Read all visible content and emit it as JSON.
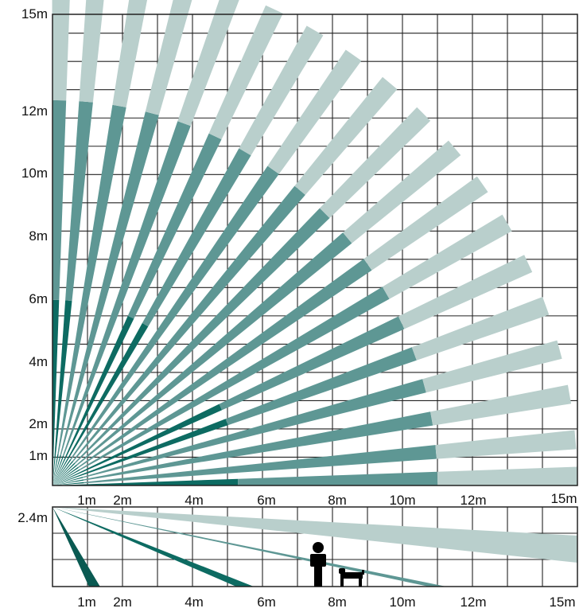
{
  "colors": {
    "dark": "#0d6b62",
    "mid": "#5e9794",
    "light": "#b9cfcc",
    "grid": "#222222",
    "background": "#ffffff",
    "silhouette": "#000000"
  },
  "top_view": {
    "y_labels": [
      "15m",
      "12m",
      "10m",
      "8m",
      "6m",
      "4m",
      "2m",
      "1m"
    ],
    "x_labels": [
      "1m",
      "2m",
      "4m",
      "6m",
      "8m",
      "10m",
      "12m",
      "15m"
    ],
    "beams": [
      {
        "direction_deg": 89,
        "mid_from_m": 5.3,
        "light_from_m": 11.0,
        "end_m": 15.0
      },
      {
        "direction_deg": 85,
        "mid_from_m": 5.3,
        "light_from_m": 11.0,
        "end_m": 15.0
      },
      {
        "direction_deg": 80,
        "mid_from_m": 0.9,
        "light_from_m": 11.0,
        "end_m": 15.0
      },
      {
        "direction_deg": 75,
        "mid_from_m": 0.9,
        "light_from_m": 11.0,
        "end_m": 15.0
      },
      {
        "direction_deg": 70,
        "mid_from_m": 0.9,
        "light_from_m": 11.0,
        "end_m": 15.0
      },
      {
        "direction_deg": 65,
        "mid_from_m": 5.3,
        "light_from_m": 11.0,
        "end_m": 15.0
      },
      {
        "direction_deg": 60,
        "mid_from_m": 5.3,
        "light_from_m": 11.0,
        "end_m": 15.0
      },
      {
        "direction_deg": 55,
        "mid_from_m": 0.9,
        "light_from_m": 11.0,
        "end_m": 15.0
      },
      {
        "direction_deg": 50,
        "mid_from_m": 0.9,
        "light_from_m": 11.0,
        "end_m": 15.0
      },
      {
        "direction_deg": 45,
        "mid_from_m": 0.9,
        "light_from_m": 11.0,
        "end_m": 15.0
      },
      {
        "direction_deg": 40,
        "mid_from_m": 0.9,
        "light_from_m": 11.0,
        "end_m": 15.0
      },
      {
        "direction_deg": 35,
        "mid_from_m": 0.9,
        "light_from_m": 11.0,
        "end_m": 15.0
      },
      {
        "direction_deg": 30,
        "mid_from_m": 0.9,
        "light_from_m": 11.0,
        "end_m": 15.0
      },
      {
        "direction_deg": 25,
        "mid_from_m": 5.3,
        "light_from_m": 11.0,
        "end_m": 15.0
      },
      {
        "direction_deg": 20,
        "mid_from_m": 5.3,
        "light_from_m": 11.0,
        "end_m": 15.0
      },
      {
        "direction_deg": 15,
        "mid_from_m": 0.9,
        "light_from_m": 11.0,
        "end_m": 15.0
      },
      {
        "direction_deg": 10,
        "mid_from_m": 0.9,
        "light_from_m": 11.0,
        "end_m": 15.0
      },
      {
        "direction_deg": 5,
        "mid_from_m": 0.9,
        "light_from_m": 11.0,
        "end_m": 15.0
      },
      {
        "direction_deg": 1,
        "mid_from_m": 5.3,
        "light_from_m": 11.0,
        "end_m": 15.0
      }
    ]
  },
  "side_view": {
    "height_label": "2.4m",
    "x_labels": [
      "1m",
      "2m",
      "4m",
      "6m",
      "8m",
      "10m",
      "12m",
      "15m"
    ],
    "beams": [
      {
        "shade": "light",
        "floor_reach_m": 15.0
      },
      {
        "shade": "mid",
        "floor_reach_m": 11.0
      },
      {
        "shade": "dark",
        "floor_reach_m": 5.5
      },
      {
        "shade": "darkest",
        "floor_reach_m": 1.2
      }
    ],
    "figures": [
      "person-icon",
      "dog-icon"
    ]
  }
}
